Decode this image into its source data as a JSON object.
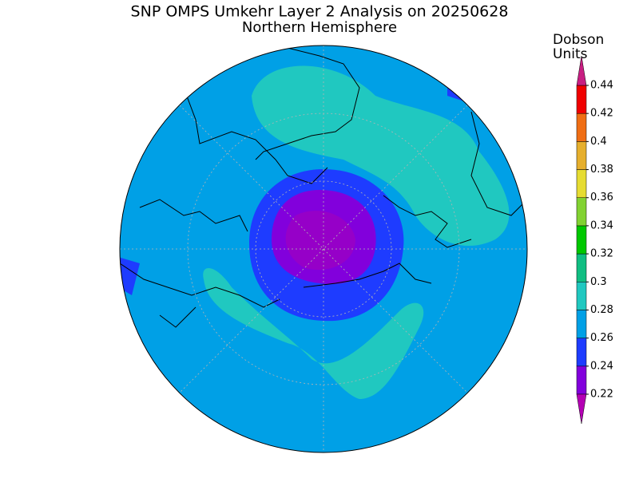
{
  "title": "SNP OMPS Umkehr Layer 2 Analysis on 20250628",
  "subtitle": "Northern Hemisphere",
  "colorbar": {
    "label": [
      "Dobson",
      "Units"
    ],
    "ylim": [
      0.22,
      0.44
    ],
    "ticks": [
      0.22,
      0.24,
      0.26,
      0.28,
      0.3,
      0.32,
      0.34,
      0.36,
      0.38,
      0.4,
      0.42,
      0.44
    ],
    "colors": [
      "#8200dc",
      "#1e3cff",
      "#00a0e6",
      "#20c8c0",
      "#10be82",
      "#00c800",
      "#82d232",
      "#e6dc32",
      "#e6af2d",
      "#f06e14",
      "#f00000"
    ],
    "under_color": "#b400b4",
    "over_color": "#c81e82"
  }
}
